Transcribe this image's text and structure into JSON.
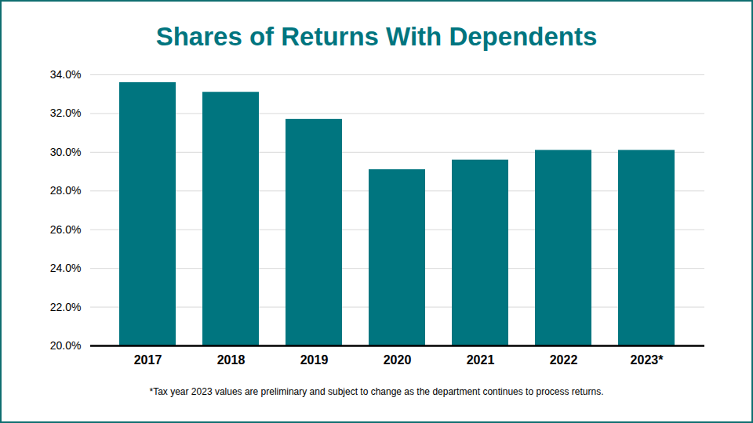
{
  "chart_data": {
    "type": "bar",
    "title": "Shares of Returns With Dependents",
    "caption": "*Tax year 2023 values are preliminary and subject to change as the department continues to process returns.",
    "categories": [
      "2017",
      "2018",
      "2019",
      "2020",
      "2021",
      "2022",
      "2023*"
    ],
    "values": [
      33.6,
      33.1,
      31.7,
      29.1,
      29.6,
      30.1,
      30.1
    ],
    "color": "#00757f",
    "ylim": [
      20,
      34
    ],
    "yticks": [
      {
        "value": 20,
        "label": "20.0%"
      },
      {
        "value": 22,
        "label": "22.0%"
      },
      {
        "value": 24,
        "label": "24.0%"
      },
      {
        "value": 26,
        "label": "26.0%"
      },
      {
        "value": 28,
        "label": "28.0%"
      },
      {
        "value": 30,
        "label": "30.0%"
      },
      {
        "value": 32,
        "label": "32.0%"
      },
      {
        "value": 34,
        "label": "34.0%"
      }
    ],
    "grid": true
  }
}
